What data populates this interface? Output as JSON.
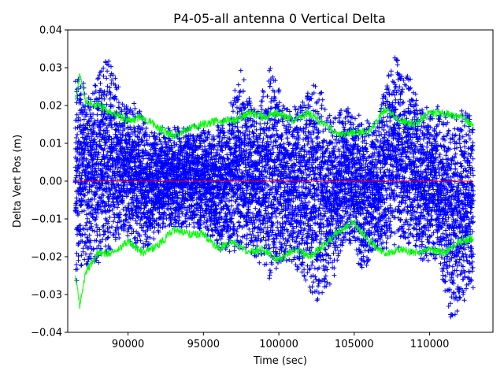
{
  "chart_data": {
    "type": "scatter",
    "title": "P4-05-all antenna 0 Vertical Delta",
    "xlabel": "Time (sec)",
    "ylabel": "Delta Vert Pos (m)",
    "xlim": [
      86000,
      114200
    ],
    "ylim": [
      -0.04,
      0.04
    ],
    "x_ticks": [
      90000,
      95000,
      100000,
      105000,
      110000
    ],
    "y_ticks": [
      -0.04,
      -0.03,
      -0.02,
      -0.01,
      0.0,
      0.01,
      0.02,
      0.03,
      0.04
    ],
    "x_tick_labels": [
      "90000",
      "95000",
      "100000",
      "105000",
      "110000"
    ],
    "y_tick_labels": [
      "−0.04",
      "−0.03",
      "−0.02",
      "−0.01",
      "0.00",
      "0.01",
      "0.02",
      "0.03",
      "0.04"
    ],
    "grid": false,
    "legend": "none",
    "series": [
      {
        "marker": "+",
        "color": "#0000ff",
        "x_range": [
          86500,
          112900
        ],
        "envelope": [
          {
            "x": 86500,
            "lo": -0.027,
            "hi": 0.031
          },
          {
            "x": 87500,
            "lo": -0.021,
            "hi": 0.022
          },
          {
            "x": 88500,
            "lo": -0.022,
            "hi": 0.034
          },
          {
            "x": 89500,
            "lo": -0.015,
            "hi": 0.025
          },
          {
            "x": 90500,
            "lo": -0.018,
            "hi": 0.021
          },
          {
            "x": 91500,
            "lo": -0.017,
            "hi": 0.013
          },
          {
            "x": 92500,
            "lo": -0.012,
            "hi": 0.015
          },
          {
            "x": 93500,
            "lo": -0.013,
            "hi": 0.014
          },
          {
            "x": 94500,
            "lo": -0.012,
            "hi": 0.015
          },
          {
            "x": 95500,
            "lo": -0.016,
            "hi": 0.013
          },
          {
            "x": 96500,
            "lo": -0.02,
            "hi": 0.017
          },
          {
            "x": 97500,
            "lo": -0.018,
            "hi": 0.03
          },
          {
            "x": 98500,
            "lo": -0.02,
            "hi": 0.018
          },
          {
            "x": 99500,
            "lo": -0.028,
            "hi": 0.032
          },
          {
            "x": 100500,
            "lo": -0.021,
            "hi": 0.019
          },
          {
            "x": 101500,
            "lo": -0.025,
            "hi": 0.021
          },
          {
            "x": 102500,
            "lo": -0.032,
            "hi": 0.027
          },
          {
            "x": 103500,
            "lo": -0.027,
            "hi": 0.017
          },
          {
            "x": 104500,
            "lo": -0.015,
            "hi": 0.02
          },
          {
            "x": 105500,
            "lo": -0.025,
            "hi": 0.017
          },
          {
            "x": 106500,
            "lo": -0.018,
            "hi": 0.015
          },
          {
            "x": 107500,
            "lo": -0.018,
            "hi": 0.034
          },
          {
            "x": 108500,
            "lo": -0.017,
            "hi": 0.03
          },
          {
            "x": 109500,
            "lo": -0.024,
            "hi": 0.02
          },
          {
            "x": 110500,
            "lo": -0.02,
            "hi": 0.02
          },
          {
            "x": 111500,
            "lo": -0.038,
            "hi": 0.018
          },
          {
            "x": 112500,
            "lo": -0.03,
            "hi": 0.019
          }
        ]
      },
      {
        "color": "#00ff00",
        "style": "line",
        "upper": [
          {
            "x": 86500,
            "y": 0.021
          },
          {
            "x": 86800,
            "y": 0.028
          },
          {
            "x": 87200,
            "y": 0.021
          },
          {
            "x": 88000,
            "y": 0.02
          },
          {
            "x": 89000,
            "y": 0.018
          },
          {
            "x": 90000,
            "y": 0.016
          },
          {
            "x": 91000,
            "y": 0.017
          },
          {
            "x": 92000,
            "y": 0.014
          },
          {
            "x": 93000,
            "y": 0.012
          },
          {
            "x": 94000,
            "y": 0.014
          },
          {
            "x": 95000,
            "y": 0.015
          },
          {
            "x": 96000,
            "y": 0.016
          },
          {
            "x": 97000,
            "y": 0.016
          },
          {
            "x": 98000,
            "y": 0.018
          },
          {
            "x": 99000,
            "y": 0.017
          },
          {
            "x": 100000,
            "y": 0.018
          },
          {
            "x": 101000,
            "y": 0.016
          },
          {
            "x": 102000,
            "y": 0.018
          },
          {
            "x": 103000,
            "y": 0.015
          },
          {
            "x": 104000,
            "y": 0.012
          },
          {
            "x": 105000,
            "y": 0.013
          },
          {
            "x": 106000,
            "y": 0.013
          },
          {
            "x": 107000,
            "y": 0.019
          },
          {
            "x": 108000,
            "y": 0.016
          },
          {
            "x": 109000,
            "y": 0.015
          },
          {
            "x": 110000,
            "y": 0.018
          },
          {
            "x": 111000,
            "y": 0.018
          },
          {
            "x": 112000,
            "y": 0.017
          },
          {
            "x": 112900,
            "y": 0.015
          }
        ],
        "lower": [
          {
            "x": 86500,
            "y": -0.025
          },
          {
            "x": 86800,
            "y": -0.033
          },
          {
            "x": 87200,
            "y": -0.024
          },
          {
            "x": 88000,
            "y": -0.019
          },
          {
            "x": 89000,
            "y": -0.019
          },
          {
            "x": 90000,
            "y": -0.016
          },
          {
            "x": 91000,
            "y": -0.019
          },
          {
            "x": 92000,
            "y": -0.017
          },
          {
            "x": 93000,
            "y": -0.013
          },
          {
            "x": 94000,
            "y": -0.014
          },
          {
            "x": 95000,
            "y": -0.014
          },
          {
            "x": 96000,
            "y": -0.018
          },
          {
            "x": 97000,
            "y": -0.016
          },
          {
            "x": 98000,
            "y": -0.019
          },
          {
            "x": 99000,
            "y": -0.018
          },
          {
            "x": 100000,
            "y": -0.021
          },
          {
            "x": 101000,
            "y": -0.018
          },
          {
            "x": 102000,
            "y": -0.02
          },
          {
            "x": 103000,
            "y": -0.017
          },
          {
            "x": 104000,
            "y": -0.013
          },
          {
            "x": 105000,
            "y": -0.011
          },
          {
            "x": 106000,
            "y": -0.016
          },
          {
            "x": 107000,
            "y": -0.019
          },
          {
            "x": 108000,
            "y": -0.018
          },
          {
            "x": 109000,
            "y": -0.019
          },
          {
            "x": 110000,
            "y": -0.018
          },
          {
            "x": 111000,
            "y": -0.019
          },
          {
            "x": 112000,
            "y": -0.016
          },
          {
            "x": 112900,
            "y": -0.015
          }
        ]
      },
      {
        "color": "#ff0000",
        "style": "line",
        "x": [
          86500,
          112900
        ],
        "y": [
          0.0,
          0.0
        ]
      }
    ]
  }
}
